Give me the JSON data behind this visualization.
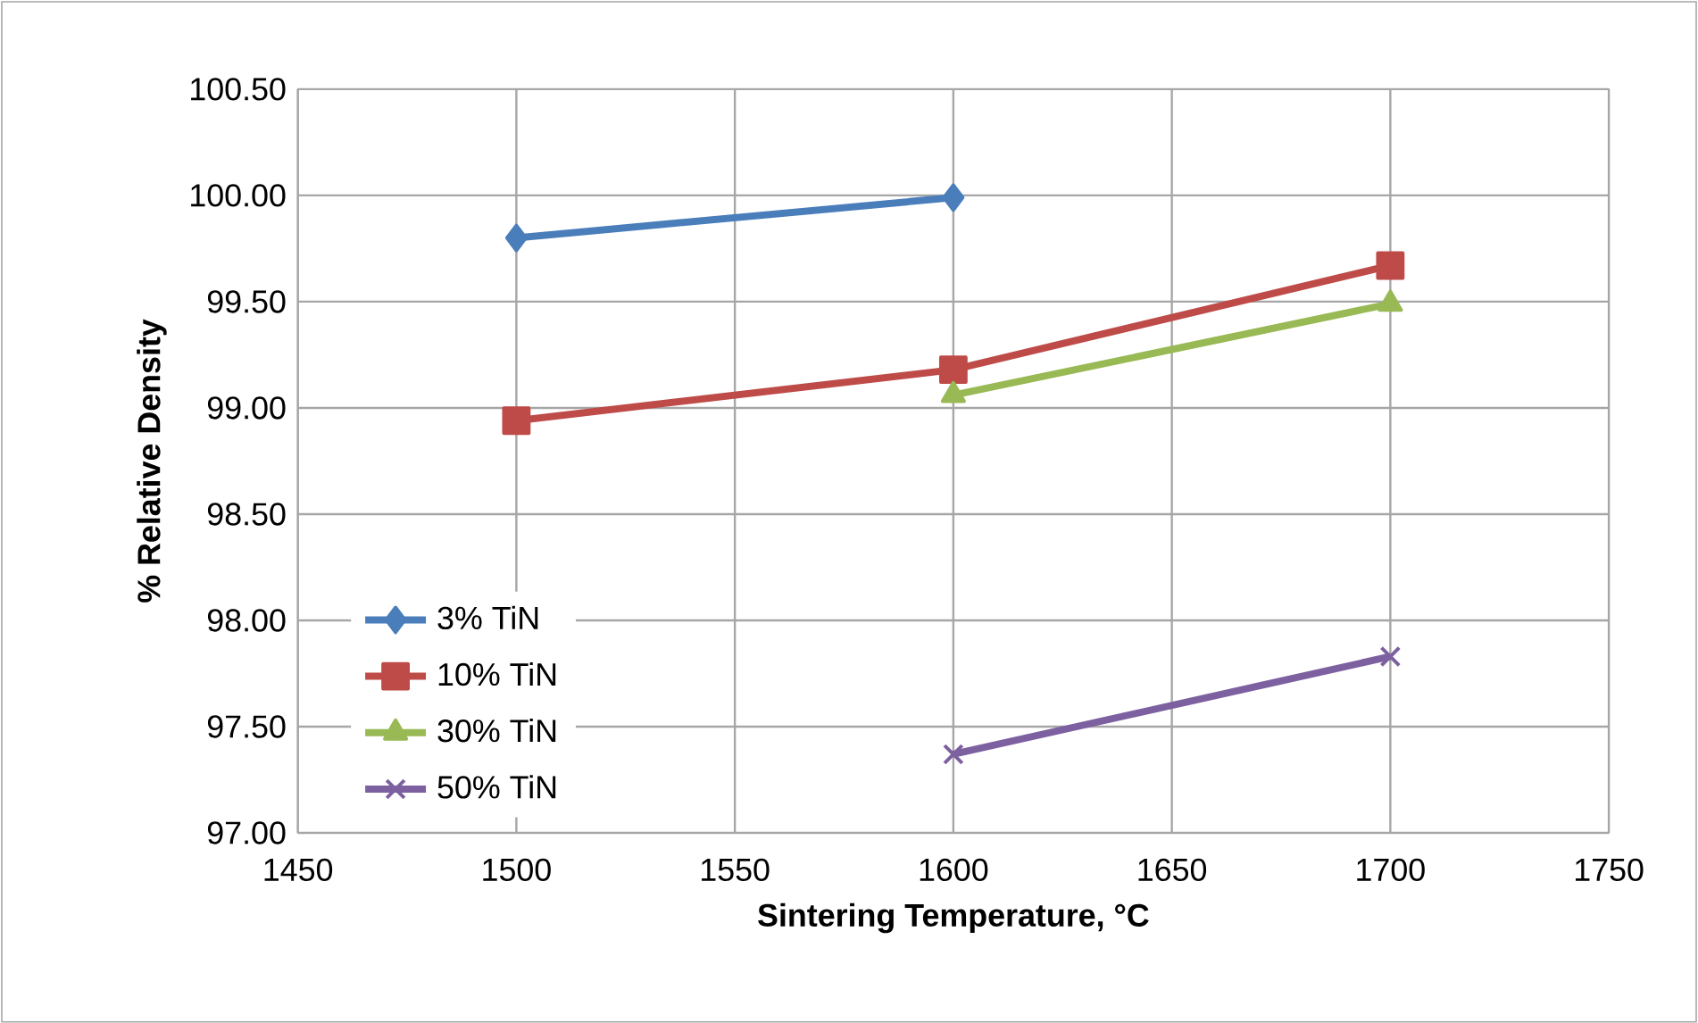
{
  "chart_data": {
    "type": "line",
    "xlabel": "Sintering Temperature, °C",
    "ylabel": "% Relative Density",
    "xlim": [
      1450,
      1750
    ],
    "xticks": [
      1450,
      1500,
      1550,
      1600,
      1650,
      1700,
      1750
    ],
    "ylim": [
      97,
      100.5
    ],
    "yticks": [
      {
        "value": 97,
        "label": "97.00"
      },
      {
        "value": 97.5,
        "label": "97.50"
      },
      {
        "value": 98,
        "label": "98.00"
      },
      {
        "value": 98.5,
        "label": "98.50"
      },
      {
        "value": 99,
        "label": "99.00"
      },
      {
        "value": 99.5,
        "label": "99.50"
      },
      {
        "value": 100,
        "label": "100.00"
      },
      {
        "value": 100.5,
        "label": "100.50"
      }
    ],
    "grid": true,
    "legend": "bottom left",
    "series": [
      {
        "name": "3% TiN",
        "color": "#4a7ebb",
        "marker": "diamond",
        "x": [
          1500,
          1600
        ],
        "values": [
          99.8,
          99.99
        ]
      },
      {
        "name": "10% TiN",
        "color": "#be4b48",
        "marker": "square",
        "x": [
          1500,
          1600,
          1700
        ],
        "values": [
          98.94,
          99.18,
          99.67
        ]
      },
      {
        "name": "30% TiN",
        "color": "#98b954",
        "marker": "triangle",
        "x": [
          1600,
          1700
        ],
        "values": [
          99.06,
          99.49
        ]
      },
      {
        "name": "50% TiN",
        "color": "#7d60a0",
        "marker": "cross",
        "x": [
          1600,
          1700
        ],
        "values": [
          97.37,
          97.83
        ]
      }
    ]
  }
}
